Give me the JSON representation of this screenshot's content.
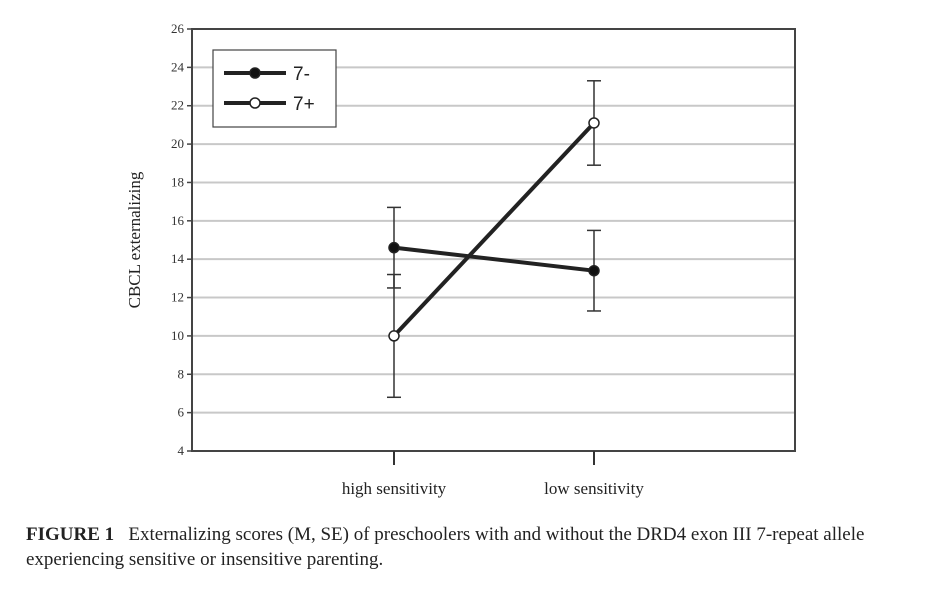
{
  "chart_data": {
    "type": "line",
    "categories": [
      "high sensitivity",
      "low sensitivity"
    ],
    "ylabel": "CBCL externalizing",
    "xlabel": "",
    "ylim": [
      4,
      26
    ],
    "yticks": [
      4,
      6,
      8,
      10,
      12,
      14,
      16,
      18,
      20,
      22,
      24,
      26
    ],
    "grid": true,
    "legend_position": "top-left",
    "series": [
      {
        "name": "7-",
        "marker": "filled",
        "values": [
          14.6,
          13.4
        ],
        "upper": [
          16.7,
          15.5
        ],
        "lower": [
          12.5,
          11.3
        ]
      },
      {
        "name": "7+",
        "marker": "open",
        "values": [
          10.0,
          21.1
        ],
        "upper": [
          13.2,
          23.3
        ],
        "lower": [
          6.8,
          18.9
        ]
      }
    ]
  },
  "caption": {
    "label": "FIGURE 1",
    "text": "Externalizing scores (M, SE) of preschoolers with and without the DRD4 exon III 7-repeat allele experiencing sensitive or insensitive parenting."
  }
}
